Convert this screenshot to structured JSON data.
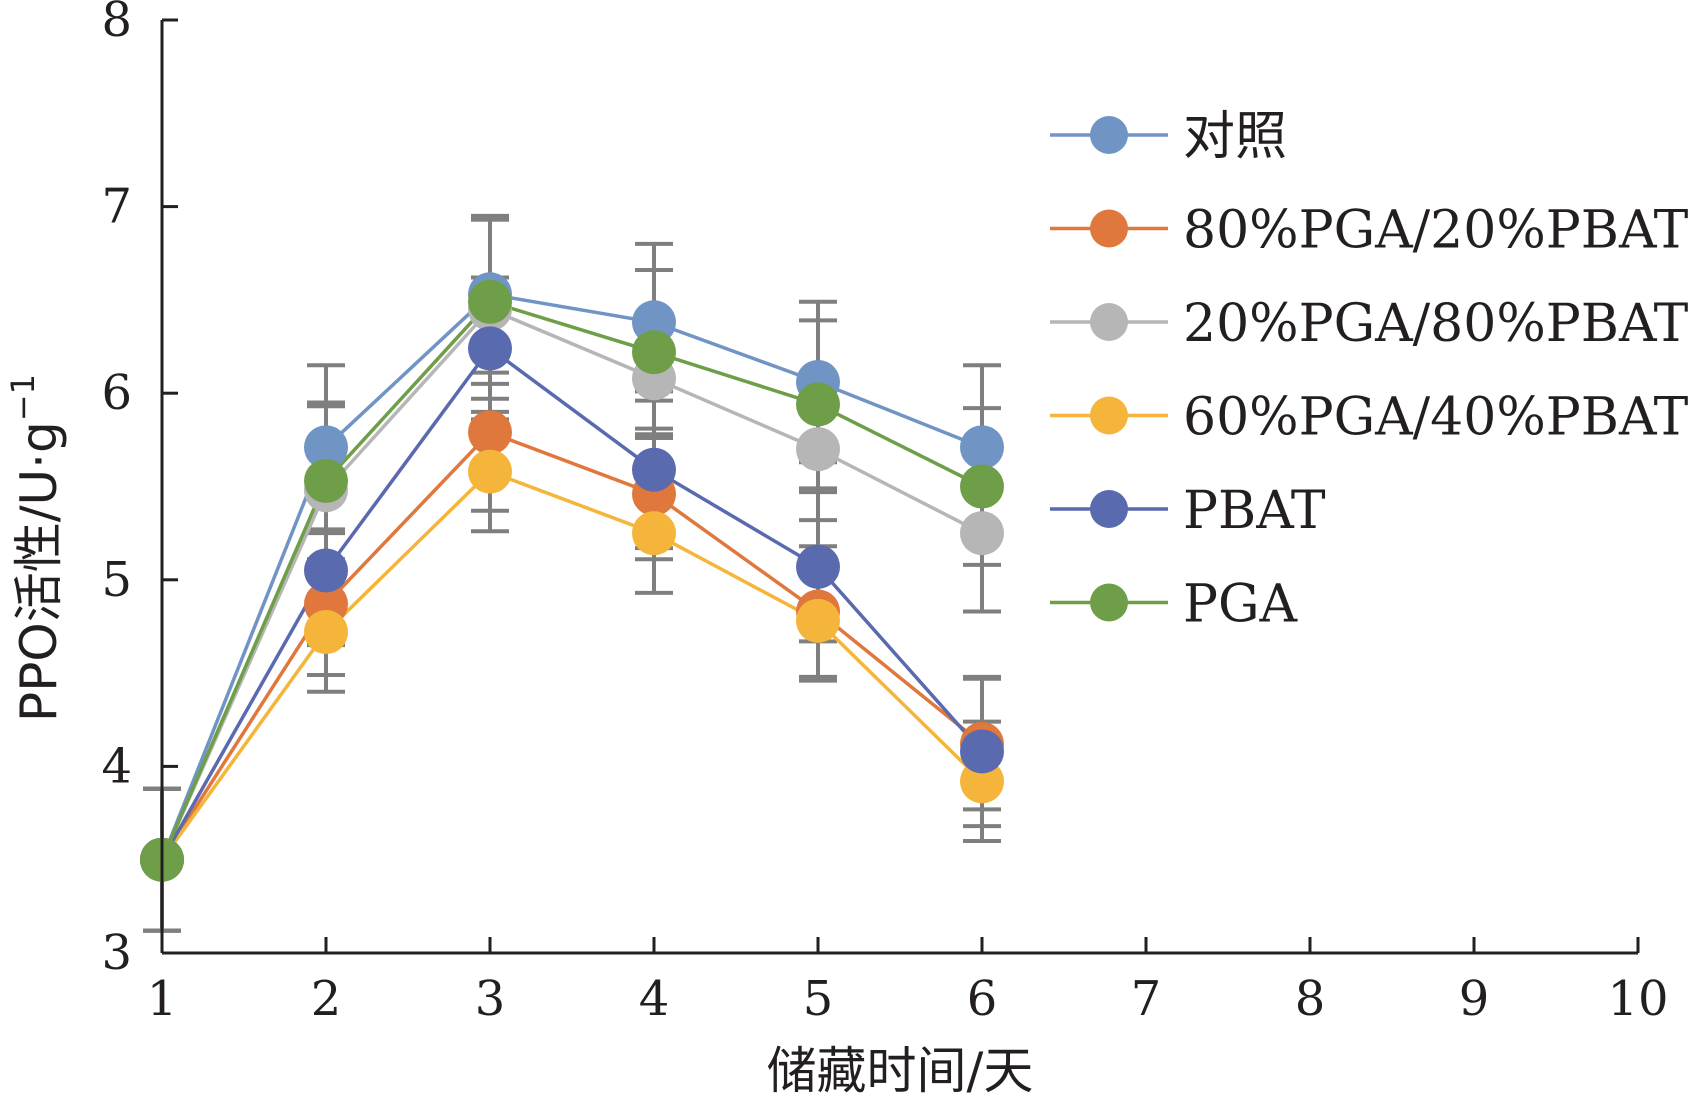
{
  "chart_data": {
    "type": "line",
    "title": "",
    "xlabel": "储藏时间/天",
    "ylabel": "PPO活性/U·g",
    "ylabel_sup": "−1",
    "xlim": [
      1,
      10
    ],
    "ylim": [
      3,
      8
    ],
    "x_ticks": [
      "1",
      "2",
      "3",
      "4",
      "5",
      "6",
      "7",
      "8",
      "9",
      "10"
    ],
    "y_ticks": [
      "3",
      "4",
      "5",
      "6",
      "7",
      "8"
    ],
    "x": [
      1,
      2,
      3,
      4,
      5,
      6
    ],
    "grid": false,
    "legend_position": "right",
    "series": [
      {
        "name": "对照",
        "color": "#7094c4",
        "values": [
          3.5,
          5.71,
          6.53,
          6.38,
          6.06,
          5.71
        ],
        "errors": [
          0.38,
          0.44,
          0.42,
          0.42,
          0.43,
          0.44
        ]
      },
      {
        "name": "80%PGA/20%PBAT",
        "color": "#e0773c",
        "values": [
          3.5,
          4.87,
          5.79,
          5.46,
          4.83,
          4.12
        ],
        "errors": [
          0.38,
          0.38,
          0.42,
          0.35,
          0.35,
          0.35
        ]
      },
      {
        "name": "20%PGA/80%PBAT",
        "color": "#b6b6b6",
        "values": [
          3.5,
          5.48,
          6.45,
          6.08,
          5.7,
          5.25
        ],
        "errors": [
          0.38,
          0.45,
          0.48,
          0.32,
          0.38,
          0.42
        ]
      },
      {
        "name": "60%PGA/40%PBAT",
        "color": "#f5b53a",
        "values": [
          3.5,
          4.72,
          5.58,
          5.25,
          4.78,
          3.92
        ],
        "errors": [
          0.38,
          0.32,
          0.32,
          0.32,
          0.32,
          0.32
        ]
      },
      {
        "name": "PBAT",
        "color": "#5a6aae",
        "values": [
          3.5,
          5.05,
          6.24,
          5.59,
          5.07,
          4.08
        ],
        "errors": [
          0.38,
          0.4,
          0.38,
          0.42,
          0.4,
          0.4
        ]
      },
      {
        "name": "PGA",
        "color": "#6e9f48",
        "values": [
          3.5,
          5.53,
          6.49,
          6.22,
          5.94,
          5.5
        ],
        "errors": [
          0.38,
          0.42,
          0.44,
          0.44,
          0.45,
          0.42
        ]
      }
    ]
  }
}
